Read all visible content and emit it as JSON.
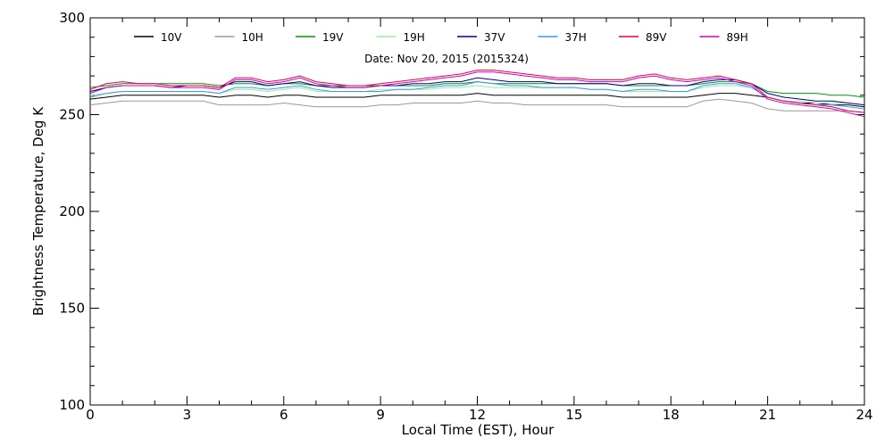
{
  "chart_data": {
    "type": "line",
    "title": "Date: Nov 20, 2015 (2015324)",
    "xlabel": "Local Time (EST), Hour",
    "ylabel": "Brightness Temperature, Deg K",
    "xlim": [
      0,
      24
    ],
    "ylim": [
      100,
      300
    ],
    "x_ticks": [
      0,
      3,
      6,
      9,
      12,
      15,
      18,
      21,
      24
    ],
    "y_ticks": [
      100,
      150,
      200,
      250,
      300
    ],
    "grid": false,
    "legend_position": "top",
    "x": [
      0,
      0.5,
      1,
      1.5,
      2,
      2.5,
      3,
      3.5,
      4,
      4.5,
      5,
      5.5,
      6,
      6.5,
      7,
      7.5,
      8,
      8.5,
      9,
      9.5,
      10,
      10.5,
      11,
      11.5,
      12,
      12.5,
      13,
      13.5,
      14,
      14.5,
      15,
      15.5,
      16,
      16.5,
      17,
      17.5,
      18,
      18.5,
      19,
      19.5,
      20,
      20.5,
      21,
      21.5,
      22,
      22.5,
      23,
      23.5,
      24
    ],
    "series": [
      {
        "name": "10V",
        "color": "#000000",
        "values": [
          258,
          259,
          260,
          260,
          260,
          260,
          260,
          260,
          259,
          260,
          260,
          259,
          260,
          260,
          259,
          259,
          259,
          259,
          260,
          260,
          260,
          260,
          260,
          260,
          261,
          260,
          260,
          260,
          260,
          260,
          260,
          260,
          260,
          259,
          259,
          259,
          259,
          259,
          260,
          261,
          261,
          260,
          259,
          257,
          256,
          256,
          255,
          255,
          254
        ]
      },
      {
        "name": "10H",
        "color": "#999999",
        "values": [
          255,
          256,
          257,
          257,
          257,
          257,
          257,
          257,
          255,
          255,
          255,
          255,
          256,
          255,
          254,
          254,
          254,
          254,
          255,
          255,
          256,
          256,
          256,
          256,
          257,
          256,
          256,
          255,
          255,
          255,
          255,
          255,
          255,
          254,
          254,
          254,
          254,
          254,
          257,
          258,
          257,
          256,
          253,
          252,
          252,
          252,
          252,
          252,
          251
        ]
      },
      {
        "name": "19V",
        "color": "#009900",
        "values": [
          264,
          265,
          266,
          266,
          266,
          266,
          266,
          266,
          265,
          266,
          266,
          265,
          266,
          266,
          265,
          265,
          265,
          265,
          265,
          265,
          265,
          265,
          266,
          266,
          267,
          266,
          266,
          266,
          266,
          266,
          266,
          266,
          266,
          265,
          265,
          265,
          265,
          265,
          266,
          267,
          267,
          266,
          262,
          261,
          261,
          261,
          260,
          260,
          259
        ]
      },
      {
        "name": "19H",
        "color": "#99ee99",
        "values": [
          260,
          261,
          262,
          262,
          262,
          262,
          262,
          262,
          261,
          263,
          263,
          262,
          263,
          264,
          262,
          262,
          262,
          262,
          263,
          263,
          263,
          263,
          264,
          264,
          265,
          264,
          264,
          264,
          264,
          264,
          264,
          263,
          263,
          262,
          262,
          262,
          262,
          262,
          264,
          265,
          265,
          264,
          259,
          257,
          257,
          256,
          256,
          256,
          255
        ]
      },
      {
        "name": "37V",
        "color": "#000099",
        "values": [
          262,
          264,
          265,
          265,
          265,
          264,
          265,
          265,
          264,
          267,
          267,
          265,
          266,
          267,
          265,
          264,
          264,
          264,
          265,
          265,
          266,
          266,
          267,
          267,
          269,
          268,
          267,
          267,
          267,
          266,
          266,
          266,
          266,
          265,
          266,
          266,
          265,
          265,
          267,
          268,
          268,
          266,
          261,
          259,
          258,
          257,
          257,
          256,
          255
        ]
      },
      {
        "name": "37H",
        "color": "#3399ff",
        "values": [
          259,
          261,
          262,
          262,
          262,
          262,
          262,
          262,
          261,
          264,
          264,
          263,
          264,
          265,
          263,
          262,
          262,
          262,
          262,
          263,
          263,
          264,
          265,
          265,
          267,
          266,
          265,
          265,
          264,
          264,
          264,
          263,
          263,
          262,
          263,
          263,
          262,
          262,
          265,
          266,
          266,
          264,
          259,
          257,
          256,
          255,
          255,
          254,
          253
        ]
      },
      {
        "name": "89V",
        "color": "#ee0044",
        "values": [
          263,
          266,
          267,
          266,
          266,
          265,
          265,
          265,
          264,
          269,
          269,
          267,
          268,
          270,
          267,
          266,
          265,
          265,
          266,
          267,
          268,
          269,
          270,
          271,
          273,
          273,
          272,
          271,
          270,
          269,
          269,
          268,
          268,
          268,
          270,
          271,
          269,
          268,
          269,
          270,
          268,
          266,
          259,
          257,
          256,
          255,
          254,
          252,
          251
        ]
      },
      {
        "name": "89H",
        "color": "#cc00cc",
        "values": [
          261,
          264,
          265,
          265,
          265,
          264,
          264,
          264,
          263,
          268,
          268,
          266,
          267,
          269,
          266,
          265,
          264,
          264,
          265,
          266,
          267,
          268,
          269,
          270,
          272,
          272,
          271,
          270,
          269,
          268,
          268,
          267,
          267,
          267,
          269,
          270,
          268,
          267,
          268,
          269,
          267,
          265,
          258,
          256,
          255,
          254,
          253,
          251,
          249
        ]
      }
    ]
  }
}
